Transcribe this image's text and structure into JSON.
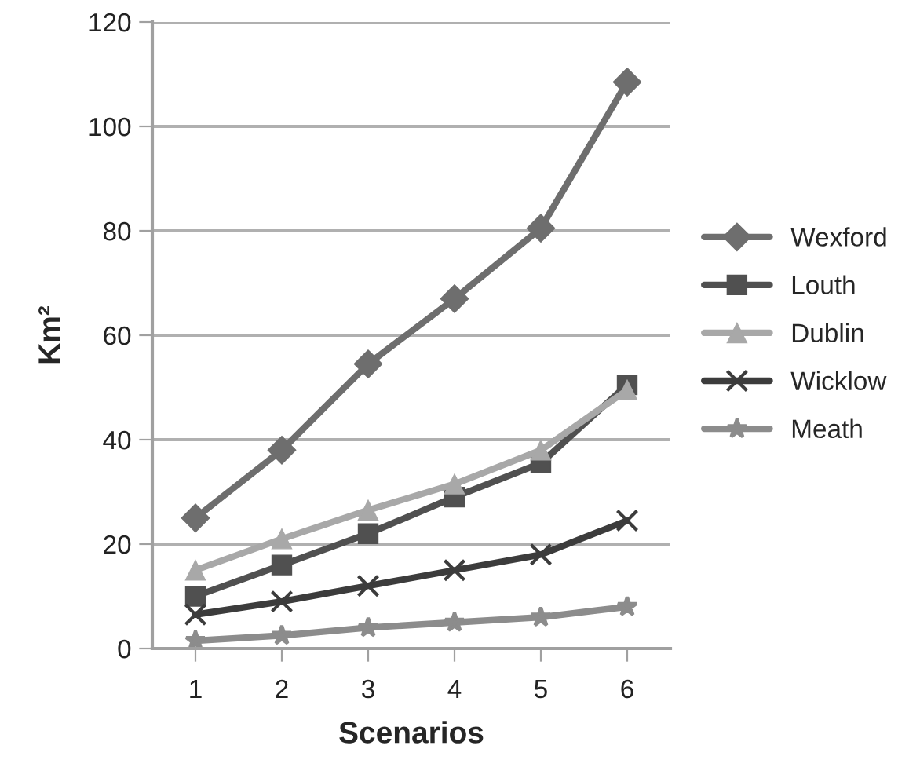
{
  "chart_data": {
    "type": "line",
    "xlabel": "Scenarios",
    "ylabel": "Km²",
    "categories": [
      "1",
      "2",
      "3",
      "4",
      "5",
      "6"
    ],
    "series": [
      {
        "name": "Wexford",
        "color": "#6e6e6e",
        "marker": "diamond",
        "values": [
          25,
          38,
          54.5,
          67,
          80.5,
          108.5
        ]
      },
      {
        "name": "Louth",
        "color": "#505050",
        "marker": "square",
        "values": [
          10,
          16,
          22,
          29,
          35.5,
          50.5
        ]
      },
      {
        "name": "Dublin",
        "color": "#a8a8a8",
        "marker": "triangle",
        "values": [
          15,
          21,
          26.5,
          31.5,
          38,
          49.5
        ]
      },
      {
        "name": "Wicklow",
        "color": "#3c3c3c",
        "marker": "cross",
        "values": [
          6.5,
          9,
          12,
          15,
          18,
          24.5
        ]
      },
      {
        "name": "Meath",
        "color": "#8c8c8c",
        "marker": "star",
        "values": [
          1.5,
          2.5,
          4,
          5,
          6,
          8
        ]
      }
    ],
    "ylim": [
      0,
      120
    ],
    "yticks": [
      0,
      20,
      40,
      60,
      80,
      100,
      120
    ],
    "grid": "y",
    "legend": "right"
  }
}
